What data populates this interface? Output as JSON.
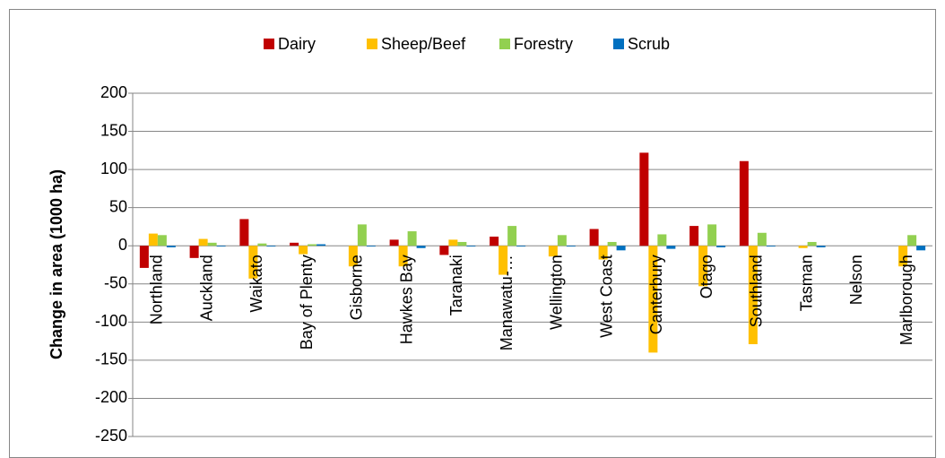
{
  "chart_data": {
    "type": "bar",
    "y_label": "Change in area (1000 ha)",
    "categories": [
      "Northland",
      "Auckland",
      "Waikato",
      "Bay of Plenty",
      "Gisborne",
      "Hawkes Bay",
      "Taranaki",
      "Manawatu-…",
      "Wellington",
      "West Coast",
      "Canterbury",
      "Otago",
      "Southland",
      "Tasman",
      "Nelson",
      "Marlborough"
    ],
    "series": [
      {
        "name": "Dairy",
        "color": "#c00000",
        "values": [
          -29,
          -16,
          35,
          4,
          0,
          8,
          -12,
          12,
          0,
          22,
          122,
          26,
          111,
          0,
          0,
          0
        ]
      },
      {
        "name": "Sheep/Beef",
        "color": "#ffc000",
        "values": [
          16,
          9,
          -43,
          -11,
          -27,
          -27,
          8,
          -38,
          -14,
          -18,
          -140,
          -53,
          -129,
          -3,
          0,
          -27
        ]
      },
      {
        "name": "Forestry",
        "color": "#92d050",
        "values": [
          14,
          4,
          3,
          2,
          28,
          19,
          5,
          26,
          14,
          5,
          15,
          28,
          17,
          5,
          0,
          14
        ]
      },
      {
        "name": "Scrub",
        "color": "#0070c0",
        "values": [
          -2,
          -1,
          -1,
          2,
          -1,
          -3,
          -1,
          -1,
          -1,
          -6,
          -4,
          -2,
          -1,
          -2,
          0,
          -6
        ]
      }
    ],
    "ylim": [
      -250,
      200
    ],
    "yticks": [
      -250,
      -200,
      -150,
      -100,
      -50,
      0,
      50,
      100,
      150,
      200
    ],
    "grid": true,
    "legend": "top"
  }
}
